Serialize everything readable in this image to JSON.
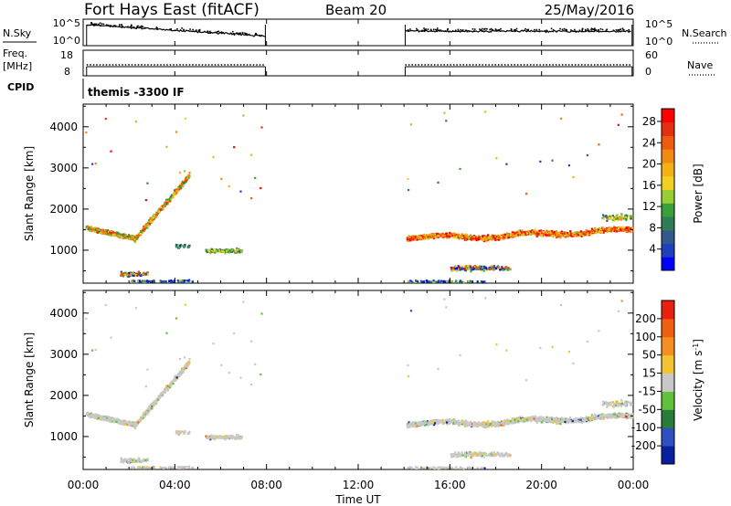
{
  "header": {
    "title": "Fort Hays East (fitACF)",
    "beam": "Beam 20",
    "date": "25/May/2016"
  },
  "side_labels": {
    "nsky": "N.Sky",
    "nsearch": "N.Search",
    "freq": "Freq.",
    "freq_unit": "[MHz]",
    "nave": "Nave",
    "cpid": "CPID",
    "cpid_value": "themis -3300 IF"
  },
  "top_panels": {
    "noise_ticks": [
      "10^5",
      "10^0"
    ],
    "noise_right_ticks": [
      "10^5",
      "10^0"
    ],
    "freq_ticks": [
      "18",
      "8"
    ],
    "nave_ticks": [
      "60",
      "0"
    ]
  },
  "chart_data": [
    {
      "type": "heatmap",
      "name": "power",
      "ylabel": "Slant Range [km]",
      "ylim": [
        200,
        4550
      ],
      "yticks": [
        1000,
        2000,
        3000,
        4000
      ],
      "xlim": [
        0,
        24
      ],
      "colorbar": {
        "label": "Power [dB]",
        "ticks": [
          "4",
          "8",
          "12",
          "16",
          "20",
          "24",
          "28"
        ],
        "colors": [
          "#0000ff",
          "#1f3fbf",
          "#33598c",
          "#2e7d56",
          "#3aa03a",
          "#9acd32",
          "#f0d020",
          "#f5b015",
          "#f08a10",
          "#ee5a10",
          "#e43010",
          "#ff0000"
        ]
      }
    },
    {
      "type": "heatmap",
      "name": "velocity",
      "ylabel": "Slant Range [km]",
      "xlabel": "Time UT",
      "ylim": [
        200,
        4550
      ],
      "yticks": [
        1000,
        2000,
        3000,
        4000
      ],
      "xlim": [
        0,
        24
      ],
      "xticks": [
        "00:00",
        "04:00",
        "08:00",
        "12:00",
        "16:00",
        "20:00",
        "00:00"
      ],
      "colorbar": {
        "label": "Velocity [m s",
        "label_sup": "-1",
        "label_end": "]",
        "ticks": [
          "200",
          "100",
          "50",
          "15",
          "-15",
          "-50",
          "-100",
          "-200"
        ],
        "colors": [
          "#0a1f9e",
          "#2e4fbe",
          "#2a7a3a",
          "#5fc23a",
          "#c8c8c8",
          "#f2c430",
          "#f59020",
          "#f06010",
          "#e82010"
        ]
      }
    }
  ]
}
